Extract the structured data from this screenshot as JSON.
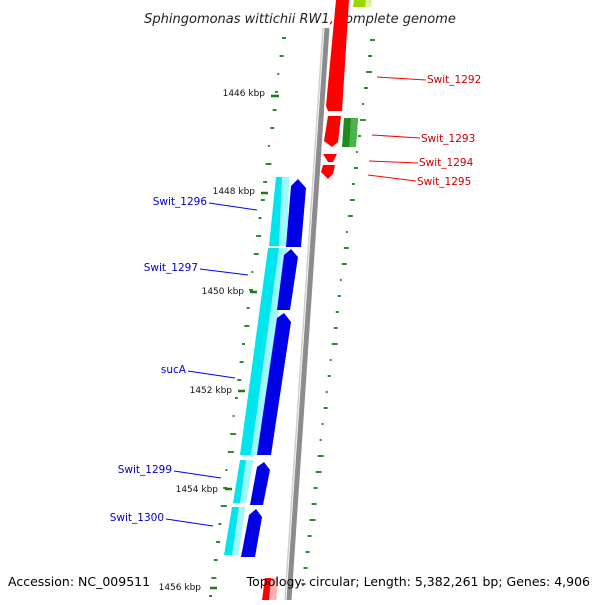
{
  "title": "Sphingomonas wittichii RW1, complete genome",
  "accession_text": "Accession: NC_009511",
  "topology_text": "Topology: circular; Length: 5,382,261 bp; Genes: 4,906",
  "ruler_labels": [
    "1446 kbp",
    "1448 kbp",
    "1450 kbp",
    "1452 kbp",
    "1454 kbp",
    "1456 kbp"
  ],
  "genes_forward": [
    {
      "name": "Swit_1292"
    },
    {
      "name": "Swit_1293"
    },
    {
      "name": "Swit_1294"
    },
    {
      "name": "Swit_1295"
    }
  ],
  "genes_reverse": [
    {
      "name": "Swit_1296"
    },
    {
      "name": "Swit_1297"
    },
    {
      "name": "sucA"
    },
    {
      "name": "Swit_1299"
    },
    {
      "name": "Swit_1300"
    }
  ],
  "colors": {
    "forward_cds": "#ff0000",
    "forward_label": "#cc0000",
    "reverse_cds": "#0000e6",
    "reverse_label": "#0000cc",
    "reverse_gene": "#00e5ee",
    "rna": "#228b22",
    "backbone": "#8c8c8c",
    "gc_tick": "#2e8b2e"
  }
}
